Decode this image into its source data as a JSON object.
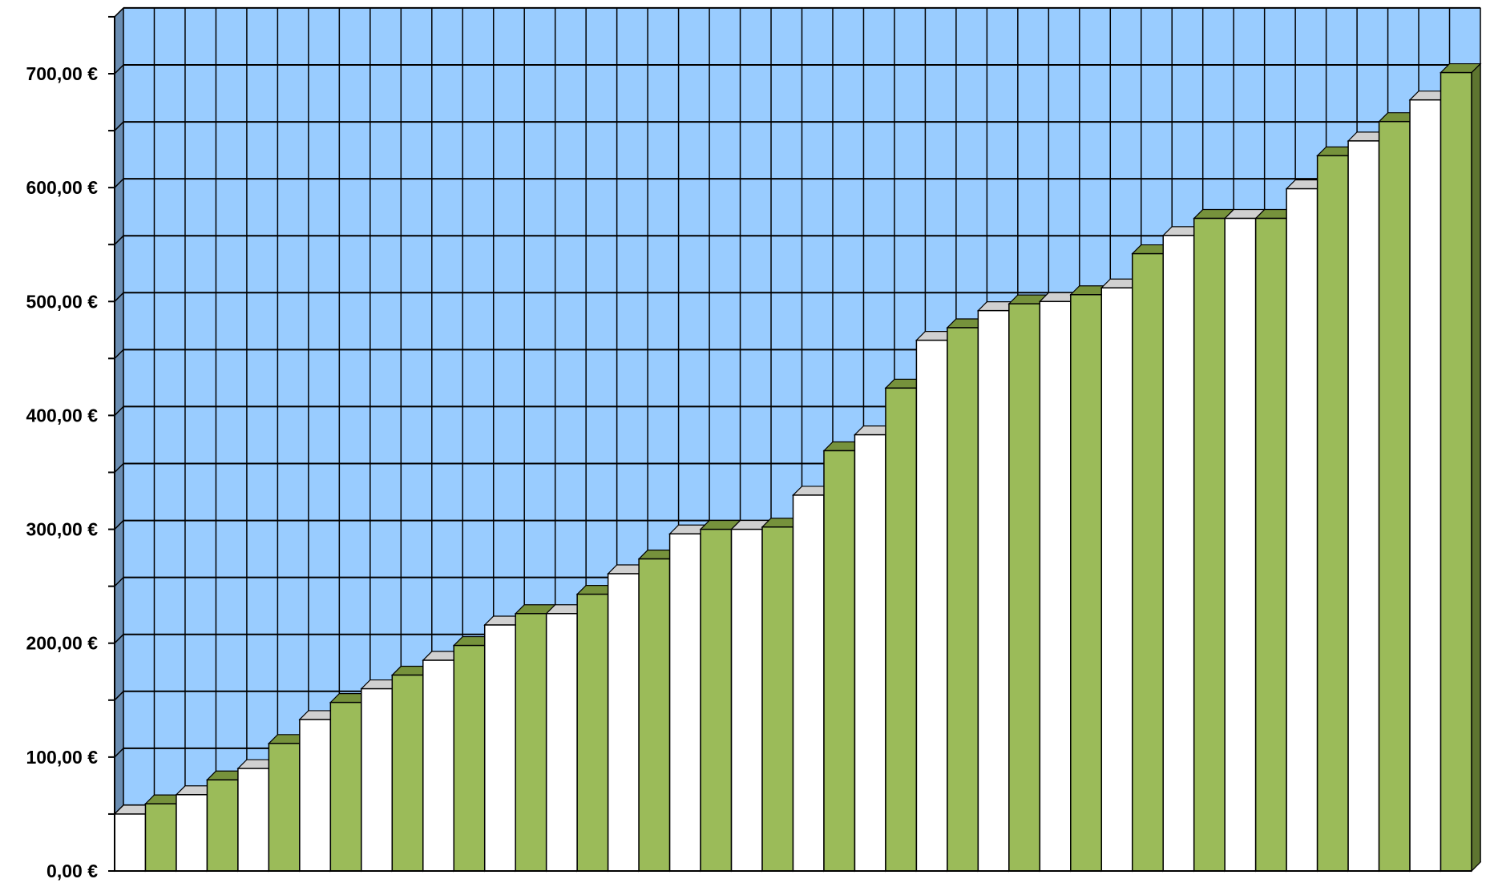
{
  "chart_data": {
    "type": "bar",
    "title": "",
    "xlabel": "",
    "ylabel": "",
    "ylim": [
      0,
      750
    ],
    "yticks": [
      0,
      100,
      200,
      300,
      400,
      500,
      600,
      700
    ],
    "ytick_labels": [
      "0,00 €",
      "100,00 €",
      "200,00 €",
      "300,00 €",
      "400,00 €",
      "500,00 €",
      "600,00 €",
      "700,00 €"
    ],
    "grid": true,
    "legend": false,
    "style": "3d-bars",
    "colors": {
      "plot_background": "#99CCFF",
      "back_wall_side": "#6A8DB2",
      "floor": "#BDBDBD",
      "grid_line": "#000000",
      "bar_white": "#FFFFFF",
      "bar_white_top": "#D0D0D0",
      "bar_green": "#9BBB59",
      "bar_green_top": "#76923C",
      "bar_green_side": "#5E7530"
    },
    "bar_colors_pattern": [
      "white",
      "green"
    ],
    "values": [
      50,
      59,
      67,
      80,
      90,
      112,
      133,
      148,
      160,
      172,
      185,
      198,
      216,
      226,
      226,
      243,
      261,
      274,
      296,
      300,
      300,
      302,
      330,
      369,
      383,
      424,
      466,
      477,
      492,
      498,
      500,
      506,
      512,
      542,
      558,
      573,
      573,
      573,
      599,
      628,
      641,
      658,
      677,
      701
    ]
  }
}
